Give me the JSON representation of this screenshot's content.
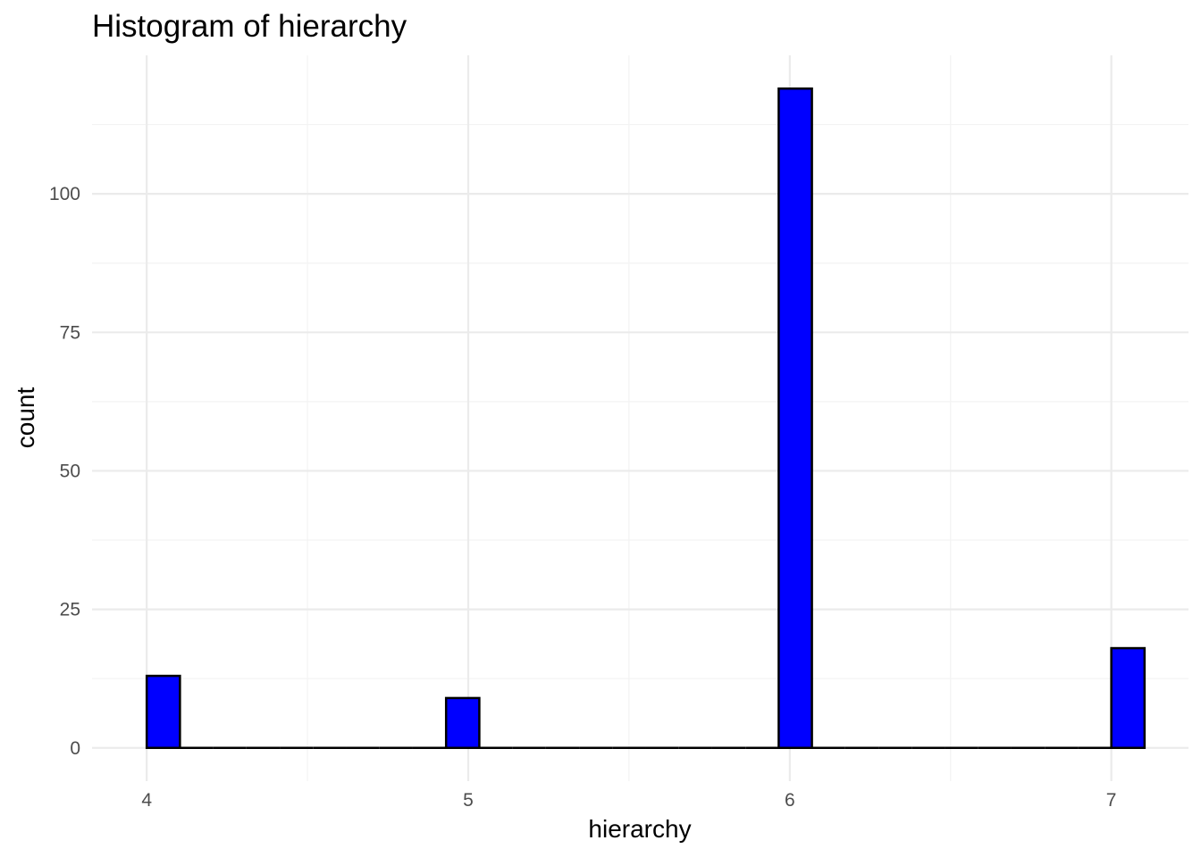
{
  "chart_data": {
    "type": "bar",
    "title": "Histogram of hierarchy",
    "xlabel": "hierarchy",
    "ylabel": "count",
    "x_ticks": [
      4,
      5,
      6,
      7
    ],
    "y_ticks": [
      0,
      25,
      50,
      75,
      100
    ],
    "xlim": [
      3.83,
      7.24
    ],
    "ylim": [
      -6,
      125
    ],
    "bin_width": 0.1034,
    "bins": [
      {
        "center": 4.0517,
        "count": 13
      },
      {
        "center": 4.1552,
        "count": 0
      },
      {
        "center": 4.2586,
        "count": 0
      },
      {
        "center": 4.3621,
        "count": 0
      },
      {
        "center": 4.4655,
        "count": 0
      },
      {
        "center": 4.569,
        "count": 0
      },
      {
        "center": 4.6724,
        "count": 0
      },
      {
        "center": 4.7759,
        "count": 0
      },
      {
        "center": 4.8793,
        "count": 0
      },
      {
        "center": 4.9828,
        "count": 9
      },
      {
        "center": 5.0862,
        "count": 0
      },
      {
        "center": 5.1897,
        "count": 0
      },
      {
        "center": 5.2931,
        "count": 0
      },
      {
        "center": 5.3966,
        "count": 0
      },
      {
        "center": 5.5,
        "count": 0
      },
      {
        "center": 5.6034,
        "count": 0
      },
      {
        "center": 5.7069,
        "count": 0
      },
      {
        "center": 5.8103,
        "count": 0
      },
      {
        "center": 5.9138,
        "count": 0
      },
      {
        "center": 6.0172,
        "count": 119
      },
      {
        "center": 6.1207,
        "count": 0
      },
      {
        "center": 6.2241,
        "count": 0
      },
      {
        "center": 6.3276,
        "count": 0
      },
      {
        "center": 6.431,
        "count": 0
      },
      {
        "center": 6.5345,
        "count": 0
      },
      {
        "center": 6.6379,
        "count": 0
      },
      {
        "center": 6.7414,
        "count": 0
      },
      {
        "center": 6.8448,
        "count": 0
      },
      {
        "center": 6.9483,
        "count": 0
      },
      {
        "center": 7.0517,
        "count": 18
      }
    ],
    "bar_fill": "#0000ff",
    "bar_outline": "#000000",
    "grid": true,
    "legend": "none"
  }
}
